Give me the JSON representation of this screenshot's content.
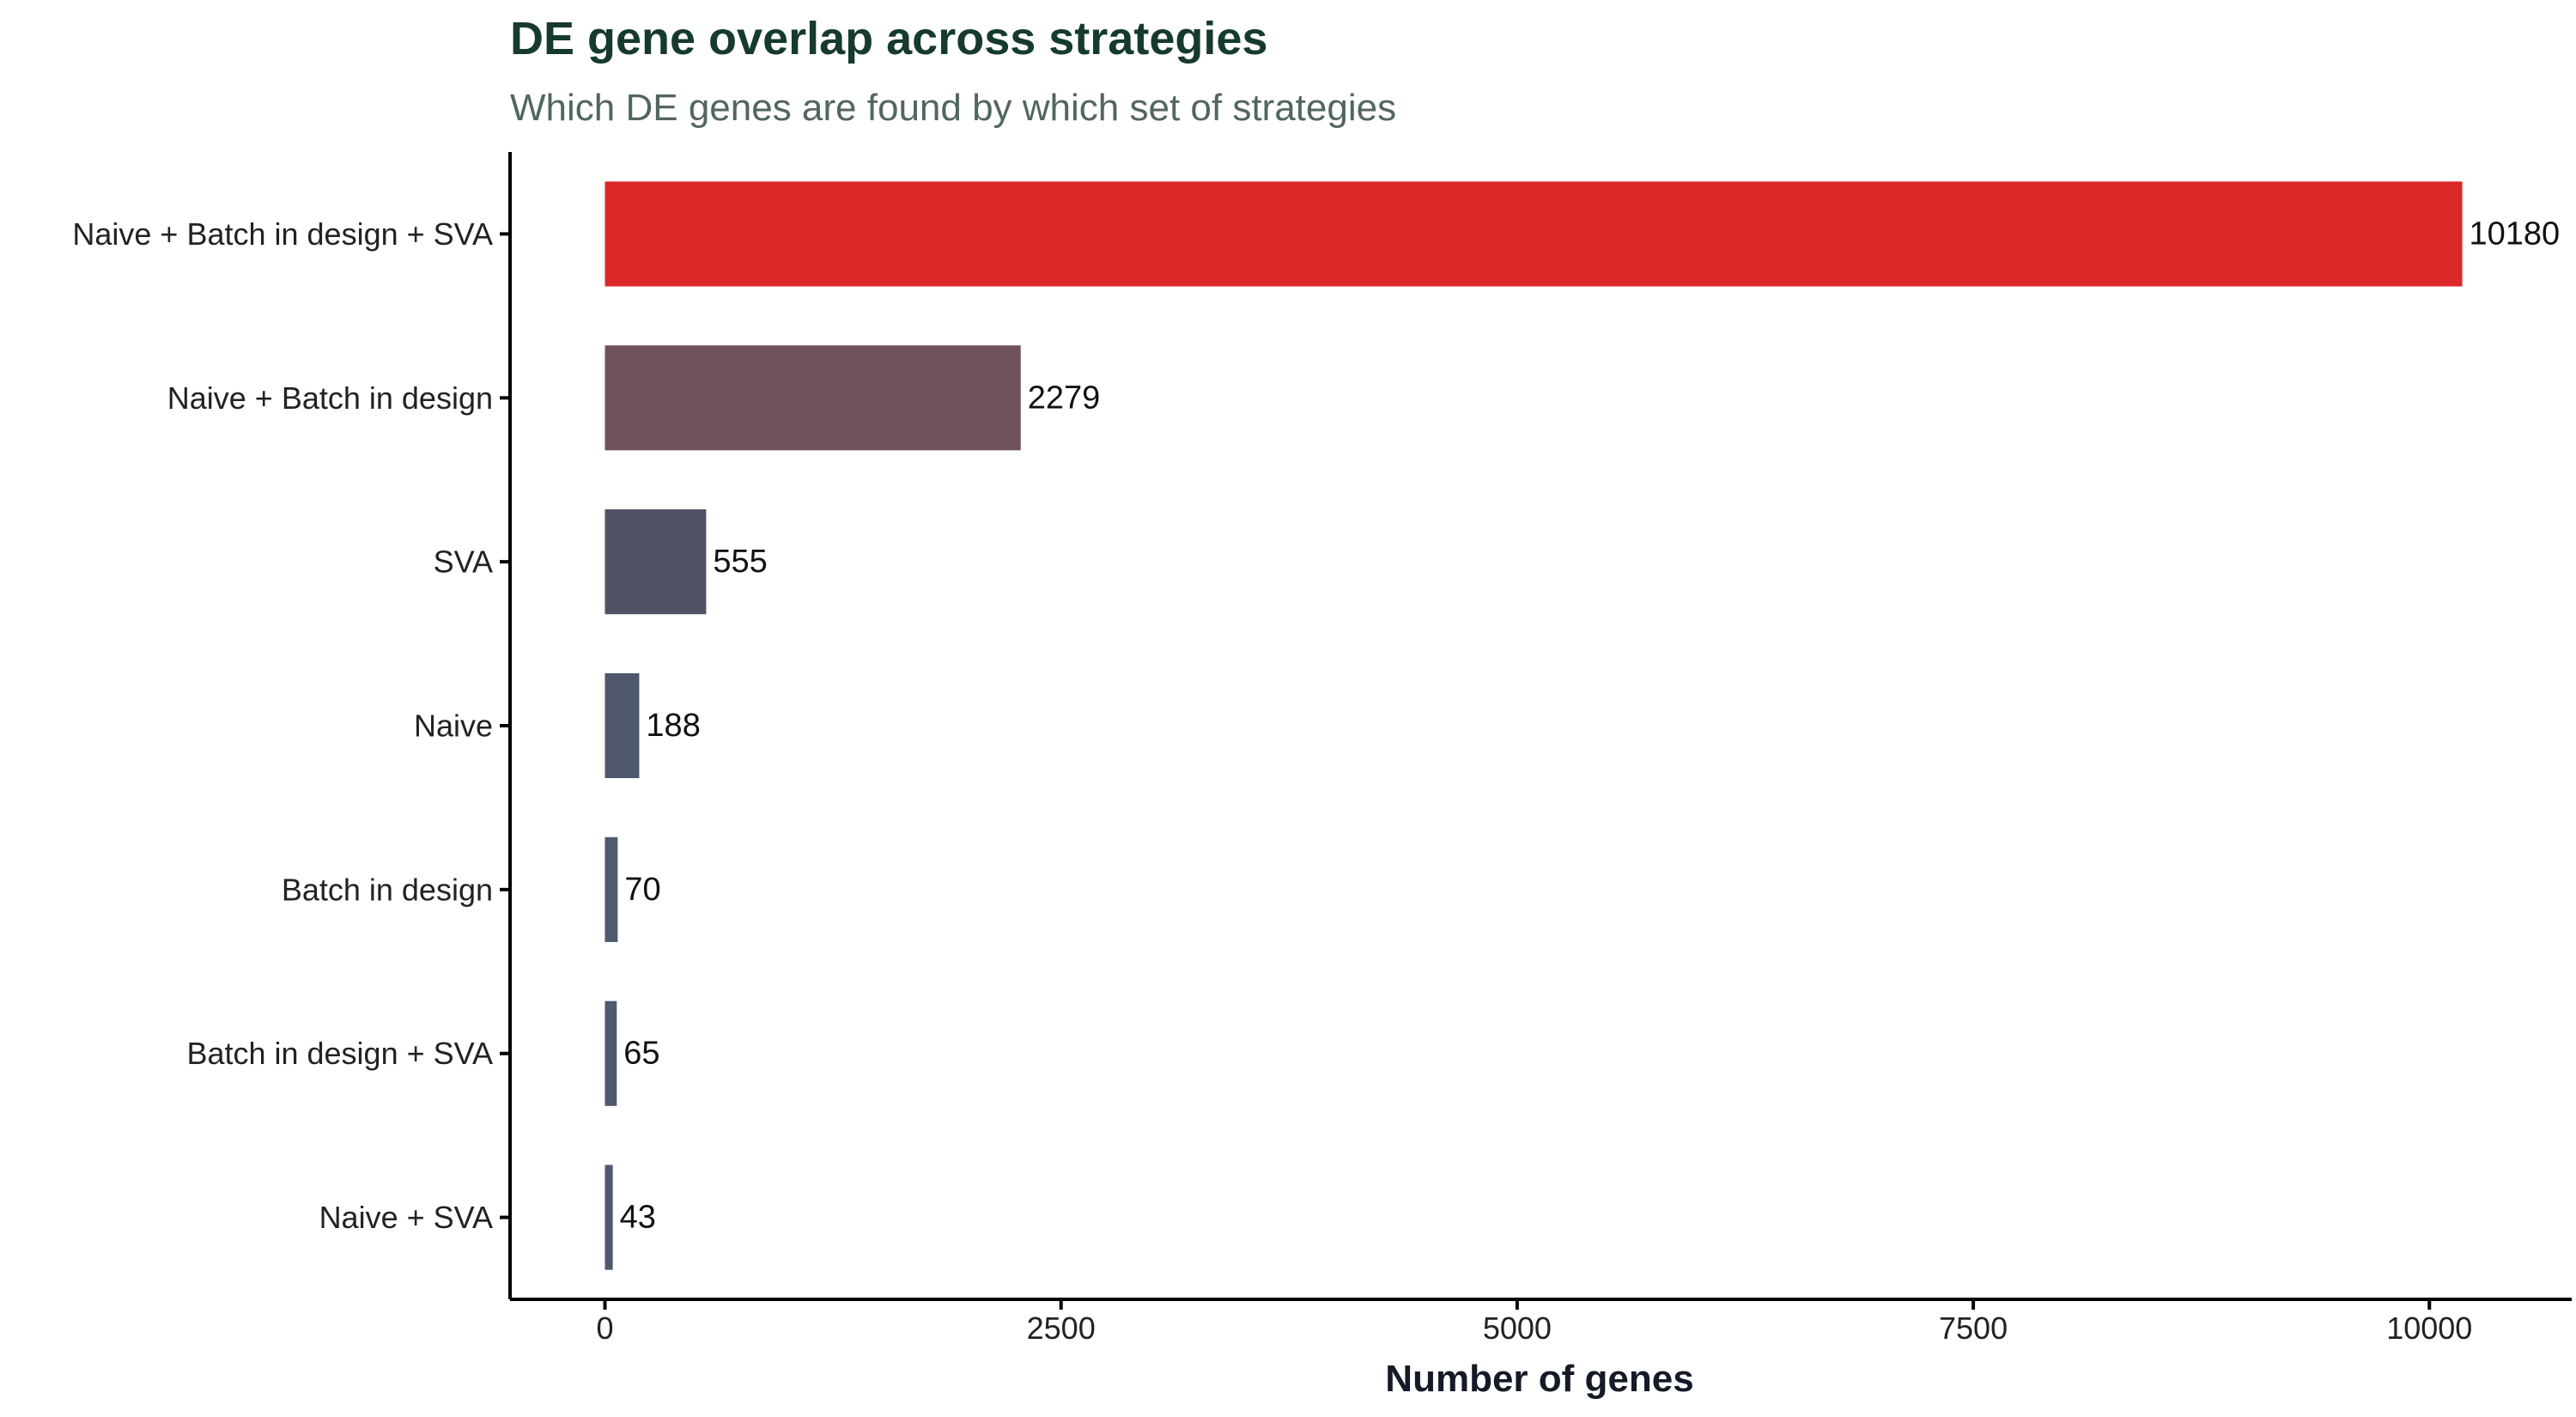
{
  "chart_data": {
    "type": "bar",
    "orientation": "horizontal",
    "title": "DE gene overlap across strategies",
    "subtitle": "Which DE genes are found by which set of strategies",
    "xlabel": "Number of genes",
    "ylabel": "",
    "xlim": [
      -520,
      10780
    ],
    "x_ticks": [
      0,
      2500,
      5000,
      7500,
      10000
    ],
    "x_tick_labels": [
      "0",
      "2500",
      "5000",
      "7500",
      "10000"
    ],
    "categories": [
      "Naive + Batch in design + SVA",
      "Naive + Batch in design",
      "SVA",
      "Naive",
      "Batch in design",
      "Batch in design + SVA",
      "Naive + SVA"
    ],
    "values": [
      10180,
      2279,
      555,
      188,
      70,
      65,
      43
    ],
    "data_labels": [
      "10180",
      "2279",
      "555",
      "188",
      "70",
      "65",
      "43"
    ],
    "colors": [
      "#dc2828",
      "#6f515a",
      "#505366",
      "#4f586c",
      "#4f5a6e",
      "#4f5a6e",
      "#4f5a6e"
    ],
    "grid": false,
    "legend": "none"
  }
}
